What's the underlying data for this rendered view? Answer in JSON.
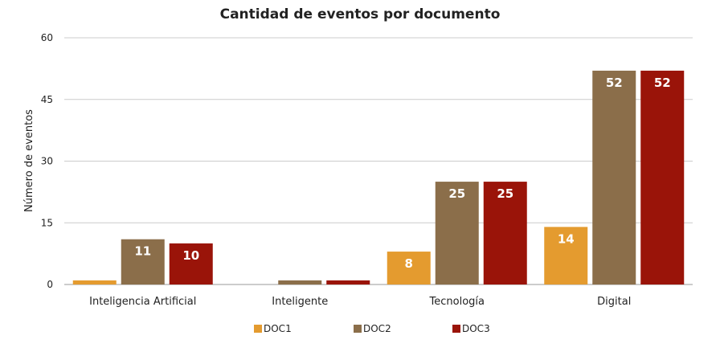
{
  "chart_data": {
    "type": "bar",
    "title": "Cantidad de eventos por documento",
    "xlabel": "",
    "ylabel": "Número de eventos",
    "ylim": [
      0,
      60
    ],
    "yticks": [
      0,
      15,
      30,
      45,
      60
    ],
    "grid": true,
    "legend_position": "bottom",
    "categories": [
      "Inteligencia Artificial",
      "Inteligente",
      "Tecnología",
      "Digital"
    ],
    "series": [
      {
        "name": "DOC1",
        "color": "#E49B2F",
        "values": [
          1,
          0,
          8,
          14
        ],
        "labels": [
          "",
          "",
          "8",
          "14"
        ]
      },
      {
        "name": "DOC2",
        "color": "#8B6E4A",
        "values": [
          11,
          1,
          25,
          52
        ],
        "labels": [
          "11",
          "",
          "25",
          "52"
        ]
      },
      {
        "name": "DOC3",
        "color": "#9A1409",
        "values": [
          10,
          1,
          25,
          52
        ],
        "labels": [
          "10",
          "",
          "25",
          "52"
        ]
      }
    ]
  }
}
